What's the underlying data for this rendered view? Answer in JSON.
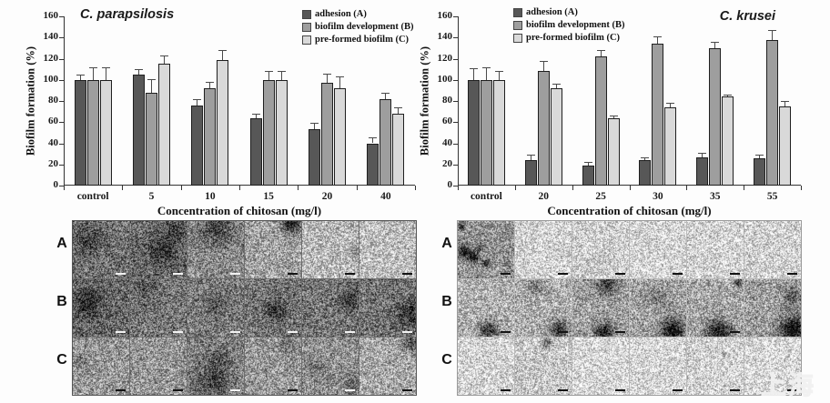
{
  "watermark": {
    "text": "上海"
  },
  "colors": {
    "adhesion": "#575757",
    "biofilm_development": "#9e9e9e",
    "preformed_biofilm": "#d9d9d9",
    "bar_border": "#1f1f1f",
    "error_bar": "#4a4a4a",
    "axis": "#333333"
  },
  "chart_data": [
    {
      "type": "bar",
      "title": "C. parapsilosis",
      "title_position": "top-left",
      "legend_position": "top-right",
      "xlabel": "Concentration of chitosan (mg/l)",
      "ylabel": "Biofilm formation (%)",
      "ylim": [
        0,
        160
      ],
      "ytick_step": 20,
      "grid": false,
      "categories": [
        "control",
        "5",
        "10",
        "15",
        "20",
        "40"
      ],
      "series": [
        {
          "name": "adhesion (A)",
          "color": "#575757",
          "values": [
            100,
            105,
            76,
            64,
            53,
            40
          ],
          "errors": [
            5,
            5,
            6,
            4,
            6,
            6
          ]
        },
        {
          "name": "biofilm development (B)",
          "color": "#9e9e9e",
          "values": [
            100,
            88,
            92,
            100,
            97,
            82
          ],
          "errors": [
            12,
            13,
            6,
            8,
            9,
            6
          ]
        },
        {
          "name": "pre-formed biofilm (C)",
          "color": "#d9d9d9",
          "values": [
            100,
            115,
            119,
            100,
            92,
            68
          ],
          "errors": [
            12,
            8,
            9,
            8,
            11,
            6
          ]
        }
      ]
    },
    {
      "type": "bar",
      "title": "C. krusei",
      "title_position": "top-right",
      "legend_position": "top-left",
      "xlabel": "Concentration of chitosan (mg/l)",
      "ylabel": "Biofilm formation (%)",
      "ylim": [
        0,
        160
      ],
      "ytick_step": 20,
      "grid": false,
      "categories": [
        "control",
        "20",
        "25",
        "30",
        "35",
        "55"
      ],
      "series": [
        {
          "name": "adhesion (A)",
          "color": "#575757",
          "values": [
            100,
            24,
            19,
            24,
            27,
            26
          ],
          "errors": [
            11,
            5,
            3,
            3,
            4,
            3
          ]
        },
        {
          "name": "biofilm development (B)",
          "color": "#9e9e9e",
          "values": [
            100,
            108,
            122,
            134,
            130,
            138
          ],
          "errors": [
            12,
            10,
            6,
            7,
            6,
            9
          ]
        },
        {
          "name": "pre-formed biofilm (C)",
          "color": "#d9d9d9",
          "values": [
            100,
            92,
            64,
            74,
            84,
            75
          ],
          "errors": [
            8,
            4,
            2,
            4,
            2,
            5
          ]
        }
      ]
    }
  ],
  "micrographs": {
    "row_labels": [
      "A",
      "B",
      "C"
    ],
    "panels": [
      {
        "name": "c-parapsilosis-micrographs",
        "rows": [
          [
            {
              "shade": 0.55,
              "blobs": [
                [
                  0.3,
                  0.3,
                  0.5,
                  0.18
                ]
              ]
            },
            {
              "shade": 0.58,
              "blobs": [
                [
                  0.55,
                  0.5,
                  0.5,
                  0.22
                ],
                [
                  0.8,
                  0.2,
                  0.3,
                  0.18
                ]
              ]
            },
            {
              "shade": 0.46,
              "blobs": [
                [
                  0.5,
                  0.12,
                  0.55,
                  0.28
                ]
              ]
            },
            {
              "shade": 0.36,
              "blobs": [
                [
                  0.82,
                  0.02,
                  0.32,
                  0.55
                ]
              ]
            },
            {
              "shade": 0.27,
              "blobs": [
                [
                  0.95,
                  0.5,
                  0.25,
                  0.18
                ]
              ]
            },
            {
              "shade": 0.24,
              "blobs": []
            }
          ],
          [
            {
              "shade": 0.6,
              "blobs": [
                [
                  0.25,
                  0.4,
                  0.42,
                  0.28
                ]
              ]
            },
            {
              "shade": 0.54,
              "blobs": [
                [
                  0.3,
                  0.15,
                  0.4,
                  0.14
                ]
              ]
            },
            {
              "shade": 0.52,
              "blobs": [
                [
                  0.5,
                  0.45,
                  0.4,
                  0.12
                ]
              ]
            },
            {
              "shade": 0.54,
              "blobs": [
                [
                  0.55,
                  0.55,
                  0.32,
                  0.28
                ]
              ]
            },
            {
              "shade": 0.54,
              "blobs": [
                [
                  0.85,
                  0.35,
                  0.38,
                  0.22
                ]
              ]
            },
            {
              "shade": 0.55,
              "blobs": [
                [
                  0.9,
                  0.6,
                  0.42,
                  0.28
                ]
              ]
            }
          ],
          [
            {
              "shade": 0.4,
              "blobs": [
                [
                  0.15,
                  0.4,
                  0.3,
                  0.13
                ]
              ]
            },
            {
              "shade": 0.41,
              "blobs": []
            },
            {
              "shade": 0.5,
              "blobs": [
                [
                  0.45,
                  0.75,
                  0.5,
                  0.26
                ],
                [
                  0.55,
                  0.35,
                  0.35,
                  0.16
                ]
              ]
            },
            {
              "shade": 0.4,
              "blobs": [
                [
                  0.75,
                  0.12,
                  0.28,
                  0.18
                ]
              ]
            },
            {
              "shade": 0.43,
              "blobs": [
                [
                  0.2,
                  0.5,
                  0.3,
                  0.13
                ],
                [
                  0.9,
                  0.8,
                  0.28,
                  0.18
                ]
              ]
            },
            {
              "shade": 0.33,
              "blobs": [
                [
                  0.92,
                  0.1,
                  0.3,
                  0.38
                ]
              ]
            }
          ]
        ]
      },
      {
        "name": "c-krusei-micrographs",
        "rows": [
          [
            {
              "shade": 0.42,
              "blobs": [
                [
                  0.12,
                  0.52,
                  0.2,
                  0.5
                ],
                [
                  0.28,
                  0.62,
                  0.17,
                  0.5
                ],
                [
                  0.5,
                  0.72,
                  0.12,
                  0.45
                ],
                [
                  0.06,
                  0.1,
                  0.1,
                  0.5
                ],
                [
                  0.38,
                  0.45,
                  0.12,
                  0.35
                ]
              ]
            },
            {
              "shade": 0.15,
              "blobs": []
            },
            {
              "shade": 0.17,
              "blobs": [
                [
                  0.5,
                  0.6,
                  0.3,
                  0.08
                ]
              ]
            },
            {
              "shade": 0.14,
              "blobs": []
            },
            {
              "shade": 0.15,
              "blobs": []
            },
            {
              "shade": 0.16,
              "blobs": []
            }
          ],
          [
            {
              "shade": 0.3,
              "blobs": [
                [
                  0.55,
                  0.88,
                  0.32,
                  0.5
                ]
              ]
            },
            {
              "shade": 0.32,
              "blobs": [
                [
                  0.35,
                  0.12,
                  0.28,
                  0.22
                ],
                [
                  0.78,
                  0.88,
                  0.3,
                  0.5
                ]
              ]
            },
            {
              "shade": 0.38,
              "blobs": [
                [
                  0.6,
                  0.08,
                  0.33,
                  0.42
                ],
                [
                  0.55,
                  0.92,
                  0.3,
                  0.5
                ]
              ]
            },
            {
              "shade": 0.36,
              "blobs": [
                [
                  0.75,
                  0.88,
                  0.38,
                  0.6
                ],
                [
                  0.5,
                  0.3,
                  0.28,
                  0.18
                ]
              ]
            },
            {
              "shade": 0.34,
              "blobs": [
                [
                  0.55,
                  0.92,
                  0.4,
                  0.6
                ],
                [
                  0.9,
                  0.04,
                  0.13,
                  0.5
                ]
              ]
            },
            {
              "shade": 0.38,
              "blobs": [
                [
                  0.85,
                  0.88,
                  0.42,
                  0.65
                ],
                [
                  0.85,
                  0.3,
                  0.3,
                  0.28
                ]
              ]
            }
          ],
          [
            {
              "shade": 0.15,
              "blobs": []
            },
            {
              "shade": 0.2,
              "blobs": [
                [
                  0.55,
                  0.08,
                  0.18,
                  0.38
                ]
              ]
            },
            {
              "shade": 0.13,
              "blobs": []
            },
            {
              "shade": 0.14,
              "blobs": []
            },
            {
              "shade": 0.15,
              "blobs": [
                [
                  0.65,
                  0.28,
                  0.06,
                  0.5
                ]
              ]
            },
            {
              "shade": 0.13,
              "blobs": []
            }
          ]
        ]
      }
    ]
  }
}
